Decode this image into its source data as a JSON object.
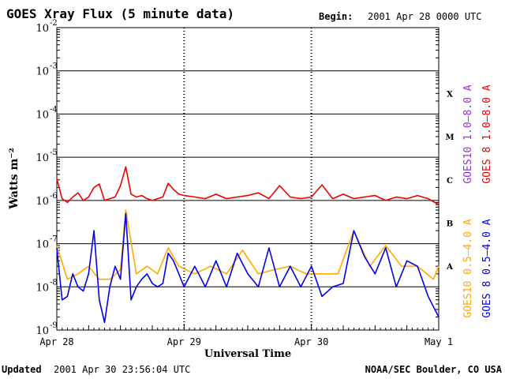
{
  "header": {
    "title": "GOES Xray Flux (5 minute data)",
    "begin_label": "Begin:",
    "begin_value": "2001 Apr 28 0000 UTC"
  },
  "footer": {
    "updated_label": "Updated",
    "updated_value": "2001 Apr 30 23:56:04 UTC",
    "credit": "NOAA/SEC Boulder, CO USA"
  },
  "colors": {
    "goes10_long": "#9933cc",
    "goes8_long": "#ee0000",
    "goes10_short": "#ffaa00",
    "goes8_short": "#0000ee",
    "axes": "#000000"
  },
  "chart_data": {
    "type": "line",
    "title": "GOES Xray Flux (5 minute data)",
    "xlabel": "Universal Time",
    "ylabel": "Watts m⁻²",
    "yscale": "log",
    "ylim": [
      1e-09,
      0.01
    ],
    "xlim": [
      "2001-04-28",
      "2001-05-01"
    ],
    "grid": "horizontal at each decade",
    "y_ticks": [
      {
        "value": 0.01,
        "base": "10",
        "exp": "-2"
      },
      {
        "value": 0.001,
        "base": "10",
        "exp": "-3"
      },
      {
        "value": 0.0001,
        "base": "10",
        "exp": "-4"
      },
      {
        "value": 1e-05,
        "base": "10",
        "exp": "-5"
      },
      {
        "value": 1e-06,
        "base": "10",
        "exp": "-6"
      },
      {
        "value": 1e-07,
        "base": "10",
        "exp": "-7"
      },
      {
        "value": 1e-08,
        "base": "10",
        "exp": "-8"
      },
      {
        "value": 1e-09,
        "base": "10",
        "exp": "-9"
      }
    ],
    "x_ticks": [
      {
        "value": "2001-04-28",
        "label": "Apr 28"
      },
      {
        "value": "2001-04-29",
        "label": "Apr 29"
      },
      {
        "value": "2001-04-30",
        "label": "Apr 30"
      },
      {
        "value": "2001-05-01",
        "label": "May 1"
      }
    ],
    "flare_classes": [
      {
        "label": "X",
        "value": 0.0003
      },
      {
        "label": "M",
        "value": 3e-05
      },
      {
        "label": "C",
        "value": 3e-06
      },
      {
        "label": "B",
        "value": 3e-07
      },
      {
        "label": "A",
        "value": 3e-08
      }
    ],
    "legend_placement": "right",
    "series": [
      {
        "name": "GOES 8 1.0–8.0 A",
        "color": "#ee0000",
        "x": [
          "2001-04-28 00:00",
          "2001-04-28 01:00",
          "2001-04-28 02:00",
          "2001-04-28 03:00",
          "2001-04-28 04:00",
          "2001-04-28 05:00",
          "2001-04-28 06:00",
          "2001-04-28 07:00",
          "2001-04-28 08:00",
          "2001-04-28 09:00",
          "2001-04-28 10:00",
          "2001-04-28 11:00",
          "2001-04-28 12:00",
          "2001-04-28 13:00",
          "2001-04-28 14:00",
          "2001-04-28 15:00",
          "2001-04-28 16:00",
          "2001-04-28 17:00",
          "2001-04-28 18:00",
          "2001-04-28 19:00",
          "2001-04-28 20:00",
          "2001-04-28 21:00",
          "2001-04-28 22:00",
          "2001-04-28 23:00",
          "2001-04-29 00:00",
          "2001-04-29 02:00",
          "2001-04-29 04:00",
          "2001-04-29 06:00",
          "2001-04-29 08:00",
          "2001-04-29 10:00",
          "2001-04-29 12:00",
          "2001-04-29 14:00",
          "2001-04-29 16:00",
          "2001-04-29 18:00",
          "2001-04-29 20:00",
          "2001-04-29 22:00",
          "2001-04-30 00:00",
          "2001-04-30 02:00",
          "2001-04-30 04:00",
          "2001-04-30 06:00",
          "2001-04-30 08:00",
          "2001-04-30 10:00",
          "2001-04-30 12:00",
          "2001-04-30 14:00",
          "2001-04-30 16:00",
          "2001-04-30 18:00",
          "2001-04-30 20:00",
          "2001-04-30 22:00",
          "2001-05-01 00:00"
        ],
        "values": [
          3.2e-06,
          1.1e-06,
          9e-07,
          1.2e-06,
          1.5e-06,
          1e-06,
          1.2e-06,
          2e-06,
          2.4e-06,
          1e-06,
          1.1e-06,
          1.2e-06,
          2.2e-06,
          6e-06,
          1.4e-06,
          1.2e-06,
          1.3e-06,
          1.1e-06,
          1e-06,
          1.1e-06,
          1.2e-06,
          2.5e-06,
          1.8e-06,
          1.4e-06,
          1.3e-06,
          1.2e-06,
          1.1e-06,
          1.4e-06,
          1.1e-06,
          1.2e-06,
          1.3e-06,
          1.5e-06,
          1.1e-06,
          2.2e-06,
          1.2e-06,
          1.1e-06,
          1.2e-06,
          2.3e-06,
          1.1e-06,
          1.4e-06,
          1.1e-06,
          1.2e-06,
          1.3e-06,
          1e-06,
          1.2e-06,
          1.1e-06,
          1.3e-06,
          1.1e-06,
          8e-07
        ]
      },
      {
        "name": "GOES 8 0.5–4.0 A",
        "color": "#0000ee",
        "x": [
          "2001-04-28 00:00",
          "2001-04-28 01:00",
          "2001-04-28 02:00",
          "2001-04-28 03:00",
          "2001-04-28 04:00",
          "2001-04-28 05:00",
          "2001-04-28 06:00",
          "2001-04-28 07:00",
          "2001-04-28 08:00",
          "2001-04-28 09:00",
          "2001-04-28 10:00",
          "2001-04-28 11:00",
          "2001-04-28 12:00",
          "2001-04-28 13:00",
          "2001-04-28 14:00",
          "2001-04-28 15:00",
          "2001-04-28 16:00",
          "2001-04-28 17:00",
          "2001-04-28 18:00",
          "2001-04-28 19:00",
          "2001-04-28 20:00",
          "2001-04-28 21:00",
          "2001-04-28 22:00",
          "2001-04-28 23:00",
          "2001-04-29 00:00",
          "2001-04-29 02:00",
          "2001-04-29 04:00",
          "2001-04-29 06:00",
          "2001-04-29 08:00",
          "2001-04-29 10:00",
          "2001-04-29 12:00",
          "2001-04-29 14:00",
          "2001-04-29 16:00",
          "2001-04-29 18:00",
          "2001-04-29 20:00",
          "2001-04-29 22:00",
          "2001-04-30 00:00",
          "2001-04-30 02:00",
          "2001-04-30 04:00",
          "2001-04-30 06:00",
          "2001-04-30 08:00",
          "2001-04-30 10:00",
          "2001-04-30 12:00",
          "2001-04-30 14:00",
          "2001-04-30 16:00",
          "2001-04-30 18:00",
          "2001-04-30 20:00",
          "2001-04-30 22:00",
          "2001-05-01 00:00"
        ],
        "values": [
          8e-08,
          5e-09,
          6e-09,
          2e-08,
          1e-08,
          8e-09,
          2e-08,
          2e-07,
          5e-09,
          1.5e-09,
          1e-08,
          3e-08,
          1.5e-08,
          5e-07,
          5e-09,
          1e-08,
          1.5e-08,
          2e-08,
          1.2e-08,
          1e-08,
          1.2e-08,
          6e-08,
          4e-08,
          2e-08,
          1e-08,
          3e-08,
          1e-08,
          4e-08,
          1e-08,
          6e-08,
          2e-08,
          1e-08,
          8e-08,
          1e-08,
          3e-08,
          1e-08,
          3e-08,
          6e-09,
          1e-08,
          1.2e-08,
          2e-07,
          5e-08,
          2e-08,
          8e-08,
          1e-08,
          4e-08,
          3e-08,
          6e-09,
          2e-09
        ]
      },
      {
        "name": "GOES10 0.5–4.0 A",
        "color": "#ffaa00",
        "x": [
          "2001-04-28 00:00",
          "2001-04-28 02:00",
          "2001-04-28 04:00",
          "2001-04-28 06:00",
          "2001-04-28 08:00",
          "2001-04-28 10:00",
          "2001-04-28 12:00",
          "2001-04-28 13:00",
          "2001-04-28 15:00",
          "2001-04-28 17:00",
          "2001-04-28 19:00",
          "2001-04-28 21:00",
          "2001-04-28 23:00",
          "2001-04-29 02:00",
          "2001-04-29 05:00",
          "2001-04-29 08:00",
          "2001-04-29 11:00",
          "2001-04-29 14:00",
          "2001-04-29 17:00",
          "2001-04-29 20:00",
          "2001-04-29 23:00",
          "2001-04-30 02:00",
          "2001-04-30 05:00",
          "2001-04-30 08:00",
          "2001-04-30 11:00",
          "2001-04-30 14:00",
          "2001-04-30 17:00",
          "2001-04-30 20:00",
          "2001-04-30 23:00",
          "2001-05-01 00:00"
        ],
        "values": [
          9e-08,
          1.5e-08,
          2e-08,
          3e-08,
          1.5e-08,
          1.5e-08,
          2.5e-08,
          6e-07,
          2e-08,
          3e-08,
          2e-08,
          8e-08,
          3e-08,
          2e-08,
          3e-08,
          2e-08,
          7e-08,
          2e-08,
          2.5e-08,
          3e-08,
          2e-08,
          2e-08,
          2e-08,
          2e-07,
          3e-08,
          9e-08,
          3e-08,
          3e-08,
          1.5e-08,
          3e-08
        ]
      },
      {
        "name": "GOES10 1.0–8.0 A",
        "color": "#9933cc",
        "x": [],
        "values": []
      }
    ]
  }
}
